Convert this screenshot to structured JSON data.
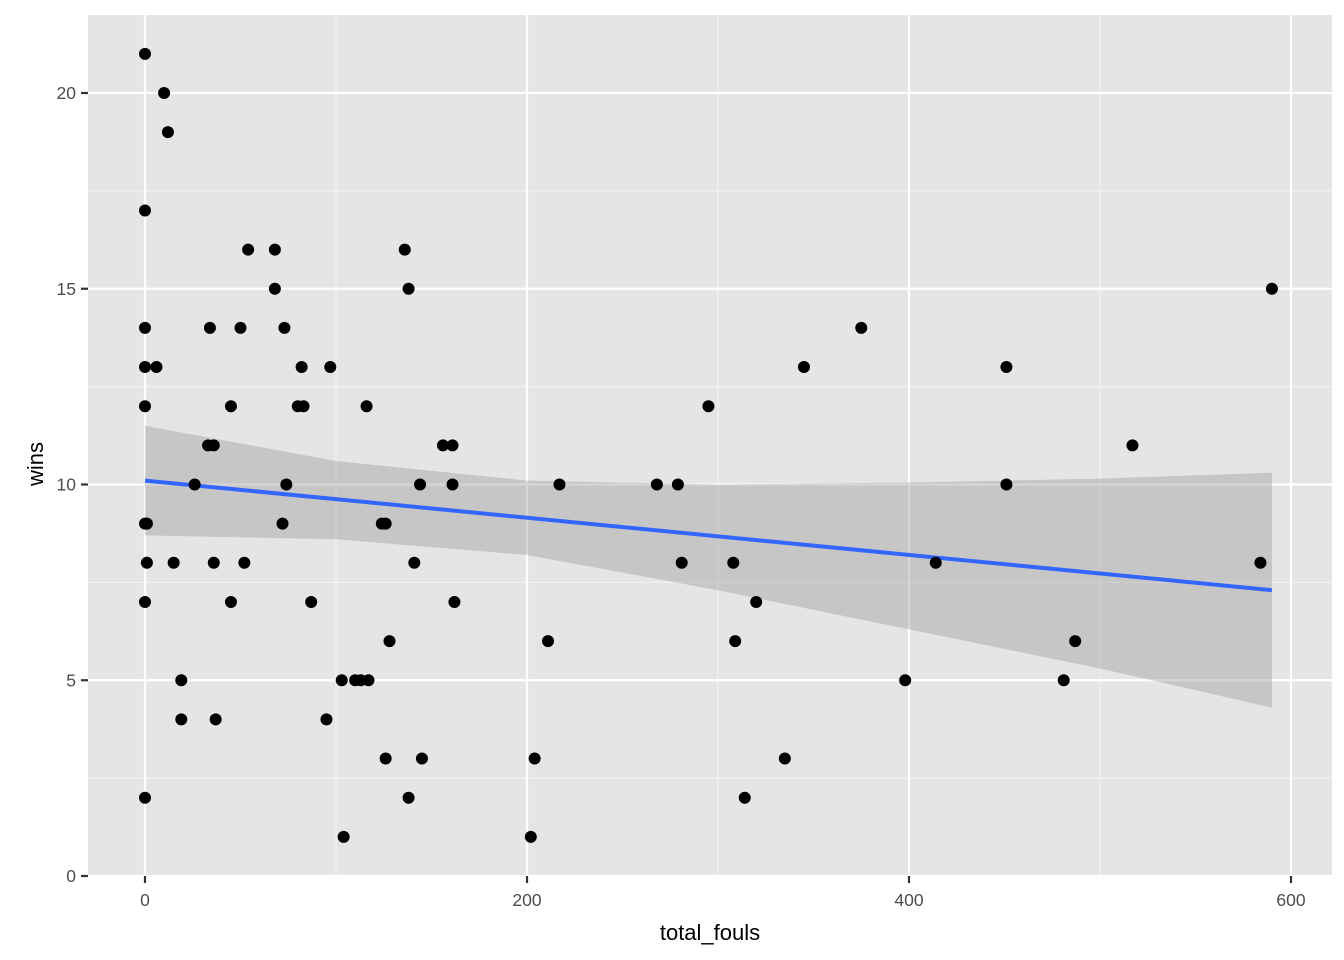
{
  "chart_data": {
    "type": "scatter",
    "title": "",
    "xlabel": "total_fouls",
    "ylabel": "wins",
    "xlim": [
      -30,
      618
    ],
    "ylim": [
      0,
      22
    ],
    "x_ticks": [
      0,
      200,
      400,
      600
    ],
    "x_tick_labels": [
      "0",
      "200",
      "400",
      "600"
    ],
    "y_ticks": [
      0,
      5,
      10,
      15,
      20
    ],
    "y_tick_labels": [
      "0",
      "5",
      "10",
      "15",
      "20"
    ],
    "grid": true,
    "legend": "none",
    "colors": {
      "panel_background": "#e5e5e5",
      "grid_major": "#ffffff",
      "grid_minor": "#f2f2f2",
      "points": "#000000",
      "smooth_line": "#3366ff",
      "confidence_band": "#999999"
    },
    "series": [
      {
        "name": "teams",
        "type": "scatter",
        "points": [
          {
            "x": 0,
            "y": 21
          },
          {
            "x": 10,
            "y": 20
          },
          {
            "x": 12,
            "y": 19
          },
          {
            "x": 0,
            "y": 17
          },
          {
            "x": 54,
            "y": 16
          },
          {
            "x": 68,
            "y": 16
          },
          {
            "x": 136,
            "y": 16
          },
          {
            "x": 68,
            "y": 15
          },
          {
            "x": 138,
            "y": 15
          },
          {
            "x": 590,
            "y": 15
          },
          {
            "x": 0,
            "y": 14
          },
          {
            "x": 34,
            "y": 14
          },
          {
            "x": 50,
            "y": 14
          },
          {
            "x": 73,
            "y": 14
          },
          {
            "x": 375,
            "y": 14
          },
          {
            "x": 0,
            "y": 13
          },
          {
            "x": 6,
            "y": 13
          },
          {
            "x": 82,
            "y": 13
          },
          {
            "x": 97,
            "y": 13
          },
          {
            "x": 345,
            "y": 13
          },
          {
            "x": 451,
            "y": 13
          },
          {
            "x": 0,
            "y": 12
          },
          {
            "x": 45,
            "y": 12
          },
          {
            "x": 80,
            "y": 12
          },
          {
            "x": 83,
            "y": 12
          },
          {
            "x": 116,
            "y": 12
          },
          {
            "x": 295,
            "y": 12
          },
          {
            "x": 33,
            "y": 11
          },
          {
            "x": 36,
            "y": 11
          },
          {
            "x": 156,
            "y": 11
          },
          {
            "x": 161,
            "y": 11
          },
          {
            "x": 517,
            "y": 11
          },
          {
            "x": 26,
            "y": 10
          },
          {
            "x": 74,
            "y": 10
          },
          {
            "x": 144,
            "y": 10
          },
          {
            "x": 161,
            "y": 10
          },
          {
            "x": 217,
            "y": 10
          },
          {
            "x": 268,
            "y": 10
          },
          {
            "x": 279,
            "y": 10
          },
          {
            "x": 451,
            "y": 10
          },
          {
            "x": 0,
            "y": 9
          },
          {
            "x": 1,
            "y": 9
          },
          {
            "x": 72,
            "y": 9
          },
          {
            "x": 124,
            "y": 9
          },
          {
            "x": 126,
            "y": 9
          },
          {
            "x": 1,
            "y": 8
          },
          {
            "x": 15,
            "y": 8
          },
          {
            "x": 36,
            "y": 8
          },
          {
            "x": 52,
            "y": 8
          },
          {
            "x": 141,
            "y": 8
          },
          {
            "x": 281,
            "y": 8
          },
          {
            "x": 308,
            "y": 8
          },
          {
            "x": 414,
            "y": 8
          },
          {
            "x": 584,
            "y": 8
          },
          {
            "x": 0,
            "y": 7
          },
          {
            "x": 45,
            "y": 7
          },
          {
            "x": 87,
            "y": 7
          },
          {
            "x": 162,
            "y": 7
          },
          {
            "x": 320,
            "y": 7
          },
          {
            "x": 128,
            "y": 6
          },
          {
            "x": 211,
            "y": 6
          },
          {
            "x": 309,
            "y": 6
          },
          {
            "x": 487,
            "y": 6
          },
          {
            "x": 19,
            "y": 5
          },
          {
            "x": 103,
            "y": 5
          },
          {
            "x": 110,
            "y": 5
          },
          {
            "x": 113,
            "y": 5
          },
          {
            "x": 117,
            "y": 5
          },
          {
            "x": 398,
            "y": 5
          },
          {
            "x": 481,
            "y": 5
          },
          {
            "x": 19,
            "y": 4
          },
          {
            "x": 37,
            "y": 4
          },
          {
            "x": 95,
            "y": 4
          },
          {
            "x": 126,
            "y": 3
          },
          {
            "x": 145,
            "y": 3
          },
          {
            "x": 204,
            "y": 3
          },
          {
            "x": 335,
            "y": 3
          },
          {
            "x": 0,
            "y": 2
          },
          {
            "x": 138,
            "y": 2
          },
          {
            "x": 314,
            "y": 2
          },
          {
            "x": 104,
            "y": 1
          },
          {
            "x": 202,
            "y": 1
          }
        ]
      },
      {
        "name": "linear fit (lm)",
        "type": "line",
        "x": [
          0,
          590
        ],
        "y": [
          10.1,
          7.3
        ]
      },
      {
        "name": "95% confidence band",
        "type": "area",
        "x": [
          0,
          100,
          200,
          300,
          400,
          500,
          590
        ],
        "upper": [
          11.5,
          10.6,
          10.1,
          10.0,
          10.05,
          10.15,
          10.3
        ],
        "lower": [
          8.7,
          8.6,
          8.2,
          7.3,
          6.3,
          5.3,
          4.3
        ]
      }
    ]
  }
}
